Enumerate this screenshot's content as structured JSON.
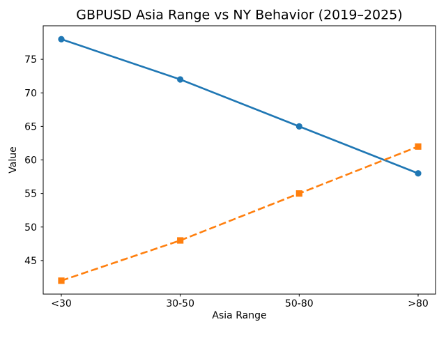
{
  "chart_data": {
    "type": "line",
    "title": "GBPUSD Asia Range vs NY Behavior (2019–2025)",
    "xlabel": "Asia Range",
    "ylabel": "Value",
    "categories": [
      "<30",
      "30-50",
      "50-80",
      ">80"
    ],
    "series": [
      {
        "values": [
          78,
          72,
          65,
          58
        ],
        "color": "#1f77b4",
        "line_style": "solid",
        "marker": "circle"
      },
      {
        "values": [
          42,
          48,
          55,
          62
        ],
        "color": "#ff7f0e",
        "line_style": "dashed",
        "marker": "square"
      }
    ],
    "ylim": [
      40,
      80
    ],
    "yticks": [
      45,
      50,
      55,
      60,
      65,
      70,
      75
    ],
    "grid": false,
    "legend_position": "none",
    "background": "#ffffff",
    "spine_color": "#000000"
  }
}
